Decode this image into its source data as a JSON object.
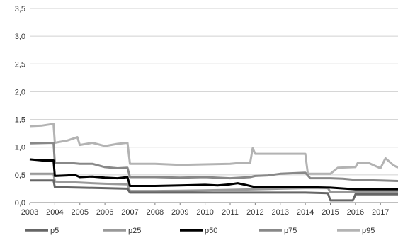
{
  "chart_data": {
    "type": "line",
    "grid": "horizontal",
    "legend_position": "bottom",
    "ylim": [
      0,
      3.5
    ],
    "y_ticks": [
      "0,0",
      "0,5",
      "1,0",
      "1,5",
      "2,0",
      "2,5",
      "3,0",
      "3,5"
    ],
    "xlim": [
      2003,
      2017.7
    ],
    "x_ticks": [
      "2003",
      "2004",
      "2005",
      "2006",
      "2007",
      "2008",
      "2009",
      "2010",
      "2011",
      "2012",
      "2013",
      "2014",
      "2015",
      "2016",
      "2017"
    ],
    "series": [
      {
        "name": "p5",
        "color": "#666666",
        "points": [
          [
            2003,
            0.4
          ],
          [
            2003.95,
            0.4
          ],
          [
            2004.0,
            0.28
          ],
          [
            2005.0,
            0.27
          ],
          [
            2006.0,
            0.26
          ],
          [
            2006.9,
            0.25
          ],
          [
            2007.0,
            0.18
          ],
          [
            2009.0,
            0.18
          ],
          [
            2011.0,
            0.18
          ],
          [
            2012.0,
            0.18
          ],
          [
            2014.0,
            0.18
          ],
          [
            2014.9,
            0.17
          ],
          [
            2015.0,
            0.04
          ],
          [
            2015.9,
            0.04
          ],
          [
            2016.0,
            0.15
          ],
          [
            2017.7,
            0.15
          ]
        ]
      },
      {
        "name": "p25",
        "color": "#999999",
        "points": [
          [
            2003,
            0.52
          ],
          [
            2003.95,
            0.52
          ],
          [
            2004.0,
            0.38
          ],
          [
            2005.0,
            0.36
          ],
          [
            2006.0,
            0.34
          ],
          [
            2006.9,
            0.33
          ],
          [
            2007.0,
            0.21
          ],
          [
            2008.0,
            0.21
          ],
          [
            2010.0,
            0.22
          ],
          [
            2011.0,
            0.23
          ],
          [
            2012.0,
            0.24
          ],
          [
            2013.0,
            0.25
          ],
          [
            2014.0,
            0.26
          ],
          [
            2014.9,
            0.26
          ],
          [
            2015.0,
            0.19
          ],
          [
            2016.0,
            0.19
          ],
          [
            2017.7,
            0.19
          ]
        ]
      },
      {
        "name": "p50",
        "color": "#000000",
        "points": [
          [
            2003,
            0.78
          ],
          [
            2003.5,
            0.76
          ],
          [
            2003.95,
            0.76
          ],
          [
            2004.0,
            0.48
          ],
          [
            2004.5,
            0.49
          ],
          [
            2004.8,
            0.5
          ],
          [
            2005.0,
            0.46
          ],
          [
            2005.5,
            0.47
          ],
          [
            2006.0,
            0.45
          ],
          [
            2006.5,
            0.44
          ],
          [
            2006.9,
            0.46
          ],
          [
            2007.0,
            0.3
          ],
          [
            2008.0,
            0.3
          ],
          [
            2009.0,
            0.31
          ],
          [
            2010.0,
            0.32
          ],
          [
            2010.5,
            0.31
          ],
          [
            2011.0,
            0.33
          ],
          [
            2011.3,
            0.35
          ],
          [
            2011.6,
            0.32
          ],
          [
            2012.0,
            0.28
          ],
          [
            2013.0,
            0.28
          ],
          [
            2014.0,
            0.28
          ],
          [
            2015.0,
            0.27
          ],
          [
            2016.0,
            0.24
          ],
          [
            2017.7,
            0.24
          ]
        ]
      },
      {
        "name": "p75",
        "color": "#888888",
        "points": [
          [
            2003,
            1.07
          ],
          [
            2003.95,
            1.08
          ],
          [
            2004.0,
            0.72
          ],
          [
            2004.5,
            0.72
          ],
          [
            2005.0,
            0.7
          ],
          [
            2005.5,
            0.7
          ],
          [
            2006.0,
            0.64
          ],
          [
            2006.5,
            0.62
          ],
          [
            2006.9,
            0.63
          ],
          [
            2007.0,
            0.46
          ],
          [
            2008.0,
            0.46
          ],
          [
            2009.0,
            0.45
          ],
          [
            2010.0,
            0.46
          ],
          [
            2011.0,
            0.44
          ],
          [
            2011.8,
            0.46
          ],
          [
            2012.0,
            0.48
          ],
          [
            2012.5,
            0.49
          ],
          [
            2013.0,
            0.52
          ],
          [
            2014.0,
            0.54
          ],
          [
            2014.2,
            0.44
          ],
          [
            2015.0,
            0.44
          ],
          [
            2015.5,
            0.43
          ],
          [
            2016.0,
            0.41
          ],
          [
            2017.0,
            0.4
          ],
          [
            2017.7,
            0.39
          ]
        ]
      },
      {
        "name": "p95",
        "color": "#b3b3b3",
        "points": [
          [
            2003,
            1.38
          ],
          [
            2003.5,
            1.39
          ],
          [
            2003.95,
            1.42
          ],
          [
            2004.0,
            1.08
          ],
          [
            2004.5,
            1.12
          ],
          [
            2004.9,
            1.18
          ],
          [
            2005.0,
            1.04
          ],
          [
            2005.5,
            1.08
          ],
          [
            2006.0,
            1.02
          ],
          [
            2006.5,
            1.06
          ],
          [
            2006.9,
            1.08
          ],
          [
            2007.0,
            0.7
          ],
          [
            2008.0,
            0.7
          ],
          [
            2009.0,
            0.68
          ],
          [
            2010.0,
            0.69
          ],
          [
            2011.0,
            0.7
          ],
          [
            2011.5,
            0.72
          ],
          [
            2011.8,
            0.72
          ],
          [
            2011.9,
            0.98
          ],
          [
            2012.0,
            0.88
          ],
          [
            2013.0,
            0.88
          ],
          [
            2014.0,
            0.88
          ],
          [
            2014.1,
            0.52
          ],
          [
            2015.0,
            0.52
          ],
          [
            2015.3,
            0.63
          ],
          [
            2016.0,
            0.64
          ],
          [
            2016.1,
            0.72
          ],
          [
            2016.5,
            0.72
          ],
          [
            2017.0,
            0.62
          ],
          [
            2017.2,
            0.8
          ],
          [
            2017.5,
            0.68
          ],
          [
            2017.7,
            0.63
          ]
        ]
      }
    ]
  }
}
